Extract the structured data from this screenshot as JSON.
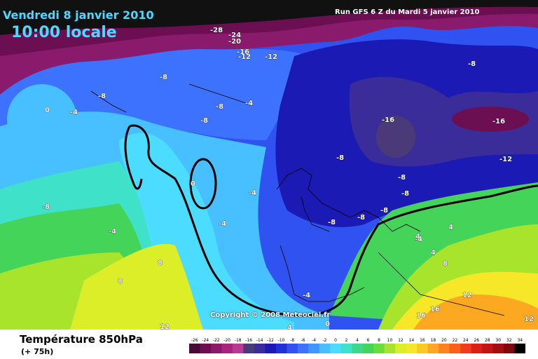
{
  "header": {
    "date": "Vendredi 8 janvier 2010",
    "time": "10:00 locale",
    "run": "Run GFS 6 Z du Mardi 5 janvier 2010"
  },
  "copyright": "Copyright © 2008 Meteociel.fr",
  "footer": {
    "title": "Température 850hPa",
    "subtitle": "(+ 75h)"
  },
  "legend": {
    "ticks": [
      "-26",
      "-24",
      "-22",
      "-20",
      "-18",
      "-16",
      "-14",
      "-12",
      "-10",
      "-8",
      "-6",
      "-4",
      "-2",
      "0",
      "2",
      "4",
      "6",
      "8",
      "10",
      "12",
      "14",
      "16",
      "18",
      "20",
      "22",
      "24",
      "26",
      "28",
      "30",
      "32",
      "34"
    ],
    "colors": [
      "#4a0a38",
      "#6b0e52",
      "#8a1a6c",
      "#a4267e",
      "#b43c92",
      "#4a3a7a",
      "#3a2d99",
      "#1c1ab4",
      "#1e32d8",
      "#2f52f0",
      "#3d72ff",
      "#3f98ff",
      "#48c0ff",
      "#4cdcff",
      "#3fe2c8",
      "#3dd88a",
      "#44d45a",
      "#6cdc3a",
      "#a8e42c",
      "#dcee28",
      "#f6e828",
      "#fcc824",
      "#fca820",
      "#fc8420",
      "#f8601c",
      "#f03c1c",
      "#dc2018",
      "#c41414",
      "#a01010",
      "#7c0c0c",
      "#000000"
    ]
  },
  "map": {
    "colors": {
      "very_cold": "#6b0e52",
      "purple": "#8a1a6c",
      "navy": "#3a2d99",
      "deep_blue": "#1c1ab4",
      "blue": "#2f52f0",
      "mid_blue": "#3d72ff",
      "light_blue": "#48c0ff",
      "cyan": "#4cdcff",
      "teal": "#3fe2c8",
      "green": "#44d45a",
      "lime": "#a8e42c",
      "yellow": "#f6e828",
      "orange": "#fca820"
    },
    "contour_labels": [
      {
        "text": "-28"
      },
      {
        "text": "-24"
      },
      {
        "text": "-20"
      },
      {
        "text": "-16"
      },
      {
        "text": "-12"
      },
      {
        "text": "-8"
      },
      {
        "text": "-8"
      },
      {
        "text": "-8"
      },
      {
        "text": "-8"
      },
      {
        "text": "-4"
      },
      {
        "text": "-4"
      },
      {
        "text": "0"
      },
      {
        "text": "-8"
      },
      {
        "text": "-8"
      },
      {
        "text": "-4"
      },
      {
        "text": "0"
      },
      {
        "text": "-4"
      },
      {
        "text": "-8"
      },
      {
        "text": "-16"
      },
      {
        "text": "-16"
      },
      {
        "text": "-12"
      },
      {
        "text": "-8"
      },
      {
        "text": "-8"
      },
      {
        "text": "-8"
      },
      {
        "text": "-8"
      },
      {
        "text": "-8"
      },
      {
        "text": "-4"
      },
      {
        "text": "4"
      },
      {
        "text": "4"
      },
      {
        "text": "4"
      },
      {
        "text": "8"
      },
      {
        "text": "8"
      },
      {
        "text": "8"
      },
      {
        "text": "12"
      },
      {
        "text": "12"
      },
      {
        "text": "12"
      },
      {
        "text": "16"
      },
      {
        "text": "16"
      },
      {
        "text": "-4"
      },
      {
        "text": "0"
      },
      {
        "text": "4"
      },
      {
        "text": "-12"
      },
      {
        "text": "-4"
      },
      {
        "text": "-8"
      }
    ]
  }
}
